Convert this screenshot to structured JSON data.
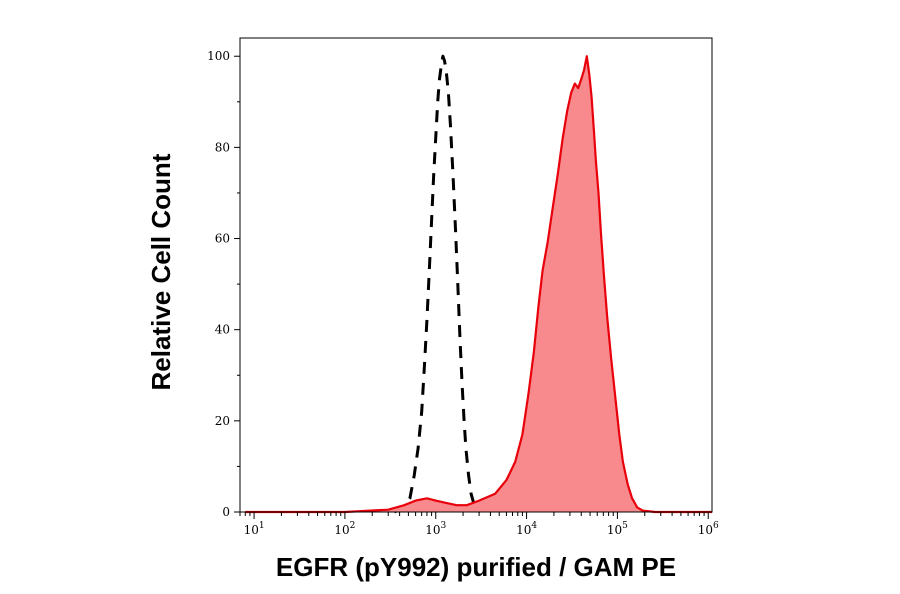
{
  "chart_data": {
    "type": "area",
    "xlabel": "EGFR (pY992) purified / GAM PE",
    "ylabel": "Relative Cell Count",
    "x_scale": "log",
    "xlim": [
      7,
      1100000
    ],
    "ylim": [
      0,
      104
    ],
    "x_ticks": [
      {
        "base": "10",
        "exp": "1"
      },
      {
        "base": "10",
        "exp": "2"
      },
      {
        "base": "10",
        "exp": "3"
      },
      {
        "base": "10",
        "exp": "4"
      },
      {
        "base": "10",
        "exp": "5"
      },
      {
        "base": "10",
        "exp": "6"
      }
    ],
    "y_ticks": [
      "0",
      "20",
      "40",
      "60",
      "80",
      "100"
    ],
    "grid": false,
    "legend": "none",
    "series": [
      {
        "style": "dashed",
        "color": "#000000",
        "fill": "none",
        "points": [
          [
            350,
            0
          ],
          [
            450,
            1
          ],
          [
            520,
            3
          ],
          [
            580,
            8
          ],
          [
            640,
            14
          ],
          [
            700,
            22
          ],
          [
            750,
            32
          ],
          [
            800,
            42
          ],
          [
            850,
            53
          ],
          [
            900,
            64
          ],
          [
            950,
            74
          ],
          [
            1000,
            82
          ],
          [
            1050,
            90
          ],
          [
            1100,
            95
          ],
          [
            1150,
            98
          ],
          [
            1200,
            100
          ],
          [
            1250,
            99
          ],
          [
            1300,
            97
          ],
          [
            1380,
            92
          ],
          [
            1450,
            85
          ],
          [
            1550,
            74
          ],
          [
            1650,
            62
          ],
          [
            1750,
            50
          ],
          [
            1850,
            38
          ],
          [
            1950,
            28
          ],
          [
            2050,
            20
          ],
          [
            2150,
            14
          ],
          [
            2300,
            8
          ],
          [
            2450,
            4
          ],
          [
            2700,
            1
          ],
          [
            3100,
            0
          ]
        ]
      },
      {
        "style": "solid",
        "color": "#e8000b",
        "fill": "#f88a8d",
        "points": [
          [
            8,
            0
          ],
          [
            100,
            0
          ],
          [
            300,
            0.5
          ],
          [
            450,
            1.5
          ],
          [
            600,
            2.5
          ],
          [
            800,
            3
          ],
          [
            1000,
            2.5
          ],
          [
            1300,
            2
          ],
          [
            1700,
            1.5
          ],
          [
            2200,
            1.5
          ],
          [
            3000,
            2.5
          ],
          [
            4500,
            4
          ],
          [
            6000,
            7
          ],
          [
            7500,
            11
          ],
          [
            9000,
            17
          ],
          [
            10500,
            26
          ],
          [
            12000,
            35
          ],
          [
            13500,
            45
          ],
          [
            15000,
            53
          ],
          [
            17000,
            59
          ],
          [
            19500,
            67
          ],
          [
            22000,
            74
          ],
          [
            25000,
            82
          ],
          [
            28000,
            88
          ],
          [
            31000,
            92
          ],
          [
            34000,
            94
          ],
          [
            37000,
            93
          ],
          [
            40000,
            95
          ],
          [
            43000,
            97
          ],
          [
            46000,
            100
          ],
          [
            49000,
            96
          ],
          [
            52000,
            91
          ],
          [
            55000,
            84
          ],
          [
            58000,
            77
          ],
          [
            62000,
            70
          ],
          [
            66000,
            61
          ],
          [
            71000,
            52
          ],
          [
            77000,
            43
          ],
          [
            85000,
            34
          ],
          [
            95000,
            25
          ],
          [
            105000,
            17
          ],
          [
            115000,
            11
          ],
          [
            130000,
            6
          ],
          [
            145000,
            3
          ],
          [
            165000,
            1
          ],
          [
            190000,
            0.3
          ],
          [
            260000,
            0
          ],
          [
            1100000,
            0
          ]
        ]
      }
    ]
  }
}
